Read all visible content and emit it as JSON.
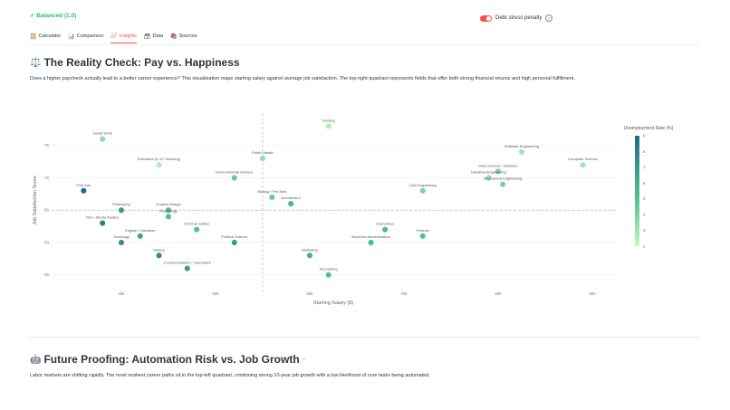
{
  "status": {
    "text": "✓ Balanced (1.0)"
  },
  "toggle": {
    "label": "Debt stress penalty",
    "on": true,
    "help": "?"
  },
  "tabs": [
    {
      "label": "Calculator",
      "icon": "🧮",
      "active": false
    },
    {
      "label": "Comparison",
      "icon": "📊",
      "active": false
    },
    {
      "label": "Insights",
      "icon": "📈",
      "active": true
    },
    {
      "label": "Data",
      "icon": "🗃",
      "active": false
    },
    {
      "label": "Sources",
      "icon": "📚",
      "active": false
    }
  ],
  "section1": {
    "icon": "⚖️",
    "title": "The Reality Check: Pay vs. Happiness",
    "description": "Does a higher paycheck actually lead to a better career experience? This visualization maps starting salary against average job satisfaction. The top-right quadrant represents fields that offer both strong financial returns and high personal fulfillment."
  },
  "chart_data": {
    "type": "scatter",
    "xlabel": "Starting Salary ($)",
    "ylabel": "Job Satisfaction Score",
    "xlim": [
      32.6,
      92.5
    ],
    "ylim": [
      53,
      80
    ],
    "xticks": [
      {
        "v": 40,
        "label": "40k"
      },
      {
        "v": 50,
        "label": "50k"
      },
      {
        "v": 60,
        "label": "60k"
      },
      {
        "v": 70,
        "label": "70k"
      },
      {
        "v": 80,
        "label": "80k"
      },
      {
        "v": 90,
        "label": "90k"
      }
    ],
    "yticks": [
      55,
      60,
      65,
      70,
      75
    ],
    "x_unit": "thousands USD",
    "reference_lines": {
      "x": 55,
      "y": 65
    },
    "grid": true,
    "colorbar": {
      "title": "Unemployment Rate (%)",
      "min": 2,
      "max": 9,
      "ticks": [
        2,
        3,
        4,
        5,
        6,
        7,
        8,
        9
      ],
      "colors": [
        "#c8f5c0",
        "#4fc48f",
        "#1f6b8a"
      ]
    },
    "points": [
      {
        "label": "Social Work",
        "x": 38,
        "y": 76,
        "u": 3.5
      },
      {
        "label": "Education (K-12 Teaching)",
        "x": 44,
        "y": 72,
        "u": 2.5
      },
      {
        "label": "Fine Arts",
        "x": 36,
        "y": 68,
        "u": 9
      },
      {
        "label": "Philosophy",
        "x": 40,
        "y": 65,
        "u": 7
      },
      {
        "label": "Graphic Design",
        "x": 45,
        "y": 65,
        "u": 5.5
      },
      {
        "label": "Psychology",
        "x": 45,
        "y": 64,
        "u": 5
      },
      {
        "label": "Film / Media Studies",
        "x": 38,
        "y": 63,
        "u": 8
      },
      {
        "label": "English / Literature",
        "x": 42,
        "y": 61,
        "u": 6.5
      },
      {
        "label": "Sociology",
        "x": 40,
        "y": 60,
        "u": 7.5
      },
      {
        "label": "Criminal Justice",
        "x": 48,
        "y": 62,
        "u": 5
      },
      {
        "label": "History",
        "x": 44,
        "y": 58,
        "u": 7.5
      },
      {
        "label": "Communications / Journalism",
        "x": 47,
        "y": 56,
        "u": 7
      },
      {
        "label": "Political Science",
        "x": 52,
        "y": 60,
        "u": 7
      },
      {
        "label": "Environmental Science",
        "x": 52,
        "y": 70,
        "u": 4.5
      },
      {
        "label": "Public Health",
        "x": 55,
        "y": 73,
        "u": 3.5
      },
      {
        "label": "Biology / Pre-Med",
        "x": 56,
        "y": 67,
        "u": 4.5
      },
      {
        "label": "Architecture",
        "x": 58,
        "y": 66,
        "u": 5.5
      },
      {
        "label": "Nursing",
        "x": 62,
        "y": 78,
        "u": 2.5
      },
      {
        "label": "Marketing",
        "x": 60,
        "y": 58,
        "u": 6
      },
      {
        "label": "Accounting",
        "x": 62,
        "y": 55,
        "u": 5
      },
      {
        "label": "Business Administration",
        "x": 66.5,
        "y": 60,
        "u": 5.5
      },
      {
        "label": "Economics",
        "x": 68,
        "y": 62,
        "u": 5.5
      },
      {
        "label": "Finance",
        "x": 72,
        "y": 61,
        "u": 5
      },
      {
        "label": "Civil Engineering",
        "x": 72,
        "y": 68,
        "u": 4
      },
      {
        "label": "Data Science / Statistics",
        "x": 80,
        "y": 71,
        "u": 4
      },
      {
        "label": "Electrical Engineering",
        "x": 79,
        "y": 70,
        "u": 3.5
      },
      {
        "label": "Mechanical Engineering",
        "x": 80.5,
        "y": 69,
        "u": 4
      },
      {
        "label": "Software Engineering",
        "x": 82.5,
        "y": 74,
        "u": 3
      },
      {
        "label": "Computer Science",
        "x": 89,
        "y": 72,
        "u": 3
      }
    ]
  },
  "section2": {
    "icon": "🤖",
    "title": "Future Proofing: Automation Risk vs. Job Growth",
    "link_icon": "∞",
    "description": "Labor markets are shifting rapidly. The most resilient career paths sit in the top-left quadrant, combining strong 10-year job growth with a low likelihood of core tasks being automated."
  }
}
